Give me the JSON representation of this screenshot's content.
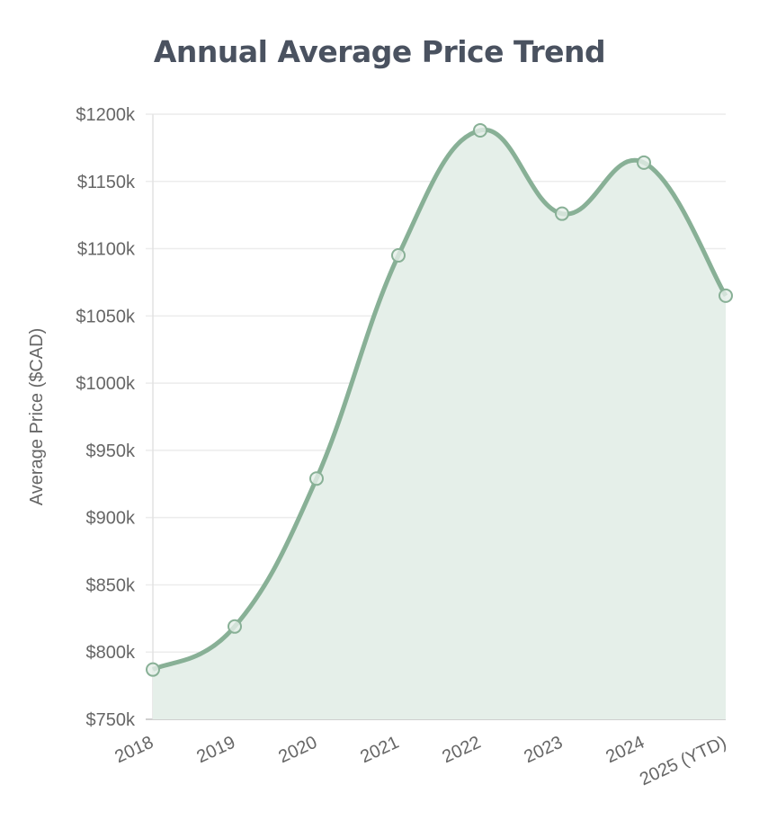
{
  "chart_data": {
    "type": "area",
    "title": "Annual Average Price Trend",
    "xlabel": "",
    "ylabel": "Average Price ($CAD)",
    "categories": [
      "2018",
      "2019",
      "2020",
      "2021",
      "2022",
      "2023",
      "2024",
      "2025 (YTD)"
    ],
    "values": [
      787,
      819,
      929,
      1095,
      1188,
      1126,
      1164,
      1065
    ],
    "value_unit": "thousands CAD",
    "ylim": [
      750,
      1200
    ],
    "yticks": [
      750,
      800,
      850,
      900,
      950,
      1000,
      1050,
      1100,
      1150,
      1200
    ],
    "ytick_labels": [
      "$750k",
      "$800k",
      "$850k",
      "$900k",
      "$950k",
      "$1000k",
      "$1050k",
      "$1100k",
      "$1150k",
      "$1200k"
    ],
    "grid": true,
    "legend": "none",
    "colors": {
      "line": "#88b096",
      "fill": "#e5efe9",
      "title": "#4a5260"
    }
  }
}
